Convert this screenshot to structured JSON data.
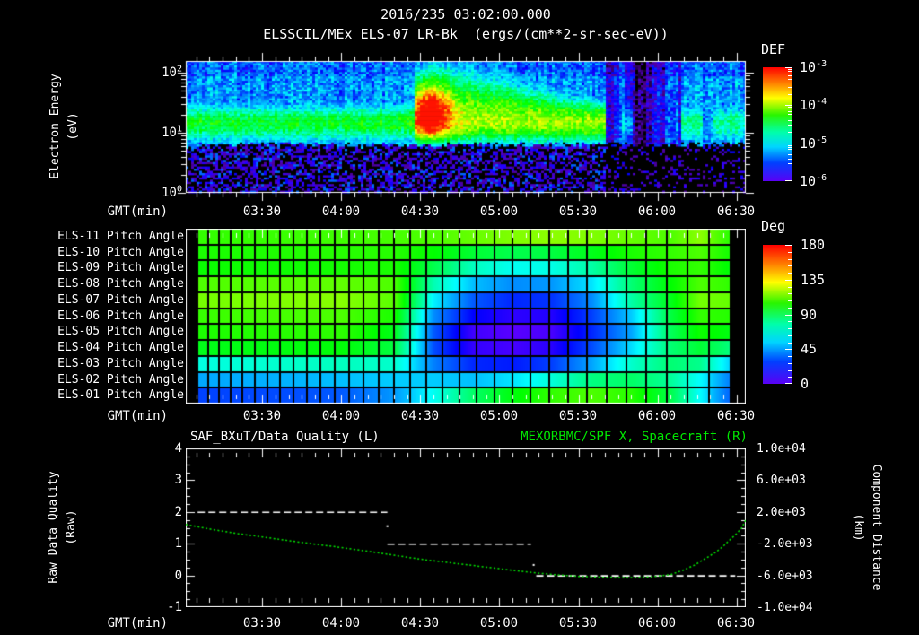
{
  "header": {
    "title_datetime": "2016/235 03:02:00.000",
    "title_instrument": "ELSSCIL/MEx ELS-07 LR-Bk  (ergs/(cm**2-sr-sec-eV))"
  },
  "time_axis": {
    "label": "GMT(min)",
    "ticks": [
      "03:30",
      "04:00",
      "04:30",
      "05:00",
      "05:30",
      "06:00",
      "06:30"
    ],
    "start_min_after_0300": 1,
    "end_min_after_0300": 213.5,
    "major_tick_interval_min": 30,
    "minor_tick_interval_min": 5
  },
  "top_panel": {
    "ylabel_line1": "Electron Energy",
    "ylabel_line2": "(eV)",
    "yticks": [
      {
        "b": "10",
        "e": "2"
      },
      {
        "b": "10",
        "e": "1"
      },
      {
        "b": "10",
        "e": "0"
      }
    ],
    "colorbar": {
      "title": "DEF",
      "labels": [
        {
          "b": "10",
          "e": "-3"
        },
        {
          "b": "10",
          "e": "-4"
        },
        {
          "b": "10",
          "e": "-5"
        },
        {
          "b": "10",
          "e": "-6"
        }
      ]
    }
  },
  "middle_panel": {
    "row_labels": [
      "ELS-11 Pitch Angle",
      "ELS-10 Pitch Angle",
      "ELS-09 Pitch Angle",
      "ELS-08 Pitch Angle",
      "ELS-07 Pitch Angle",
      "ELS-06 Pitch Angle",
      "ELS-05 Pitch Angle",
      "ELS-04 Pitch Angle",
      "ELS-03 Pitch Angle",
      "ELS-02 Pitch Angle",
      "ELS-01 Pitch Angle"
    ],
    "colorbar": {
      "title": "Deg",
      "labels": [
        "180",
        "135",
        "90",
        "45",
        "0"
      ]
    }
  },
  "bottom_panel": {
    "title_left": "SAF_BXuT/Data Quality (L)",
    "title_right": "MEXORBMC/SPF X, Spacecraft (R)",
    "title_right_color": "#00e800",
    "ylabel_left_line1": "Raw Data Quality",
    "ylabel_left_line2": "(Raw)",
    "yticks_left": [
      "4",
      "3",
      "2",
      "1",
      "0",
      "-1"
    ],
    "ylabel_right_line1": "Component Distance",
    "ylabel_right_line2": "(km)",
    "yticks_right": [
      "1.0e+04",
      "6.0e+03",
      "2.0e+03",
      "-2.0e+03",
      "-6.0e+03",
      "-1.0e+04"
    ]
  },
  "chart_data": [
    {
      "type": "heatmap",
      "name": "electron_energy_spectrogram",
      "title": "ELSSCIL/MEx ELS-07 LR-Bk",
      "units": "ergs/(cm**2-sr-sec-eV)",
      "x_range_min_after_0300": [
        1,
        213.5
      ],
      "y_axis": {
        "label": "Electron Energy (eV)",
        "scale": "log",
        "range_log10_eV": [
          0,
          2.2
        ],
        "tick_values_eV": [
          1,
          10,
          100
        ]
      },
      "color_axis": {
        "label": "DEF",
        "scale": "log",
        "range_log10_flux": [
          -6,
          -3
        ]
      },
      "features": {
        "background_log10_flux": -5.28,
        "band": {
          "center_log10_eV": 1.17,
          "sigma_log10": 0.25,
          "peak_log10_flux": -4.4,
          "t_range": [
            1,
            160.5
          ]
        },
        "burst": {
          "t_range": [
            88,
            160.5
          ],
          "peak_log10_flux": -3.1,
          "core_t_min": 94,
          "core_log10_eV": 1.42
        },
        "dropout": {
          "t_range": [
            160.5,
            188.5
          ],
          "background_log10_flux": -5.62,
          "black_columns_t_range": [
            171,
            177.5
          ]
        },
        "recovery": {
          "t_range": [
            188.5,
            213.5
          ],
          "peak_log10_flux": -4.7,
          "break_t_range": [
            197.5,
            201.5
          ]
        },
        "low_energy_cutoff_log10_eV": 0.8
      }
    },
    {
      "type": "heatmap",
      "name": "pitch_angle_by_anode",
      "rows_top_to_bottom": [
        "ELS-11",
        "ELS-10",
        "ELS-09",
        "ELS-08",
        "ELS-07",
        "ELS-06",
        "ELS-05",
        "ELS-04",
        "ELS-03",
        "ELS-02",
        "ELS-01"
      ],
      "times_min_after_0300": [
        2,
        20,
        40,
        60,
        80,
        95,
        110,
        125,
        140,
        155,
        170,
        185,
        196,
        206,
        213
      ],
      "values_deg": [
        [
          108,
          108,
          109,
          110,
          111,
          112,
          116,
          120,
          122,
          120,
          116,
          112,
          122,
          108,
          100
        ],
        [
          104,
          104,
          105,
          106,
          106,
          100,
          92,
          88,
          90,
          96,
          104,
          108,
          112,
          104,
          98
        ],
        [
          101,
          102,
          102,
          103,
          104,
          88,
          70,
          62,
          64,
          74,
          92,
          104,
          108,
          100,
          92
        ],
        [
          112,
          113,
          114,
          115,
          112,
          72,
          50,
          42,
          44,
          56,
          82,
          100,
          112,
          108,
          100
        ],
        [
          118,
          119,
          120,
          121,
          114,
          58,
          34,
          26,
          28,
          42,
          74,
          96,
          118,
          116,
          112
        ],
        [
          108,
          110,
          111,
          112,
          104,
          42,
          20,
          13,
          15,
          30,
          52,
          90,
          108,
          106,
          102
        ],
        [
          104,
          105,
          106,
          107,
          96,
          34,
          10,
          6,
          9,
          26,
          46,
          86,
          102,
          98,
          94
        ],
        [
          96,
          97,
          98,
          99,
          90,
          32,
          12,
          9,
          14,
          32,
          55,
          82,
          92,
          82,
          70
        ],
        [
          64,
          66,
          68,
          70,
          68,
          40,
          26,
          24,
          30,
          46,
          68,
          82,
          78,
          56,
          40
        ],
        [
          46,
          47,
          48,
          50,
          52,
          52,
          50,
          56,
          66,
          80,
          84,
          76,
          60,
          42,
          32
        ],
        [
          30,
          31,
          32,
          34,
          44,
          62,
          84,
          98,
          108,
          112,
          106,
          88,
          60,
          38,
          28
        ]
      ],
      "value_range_deg": [
        0,
        180
      ],
      "grid_columns": 33
    },
    {
      "type": "line",
      "name": "quality_and_distance",
      "series": [
        {
          "name": "SAF_BXuT/Data Quality (L)",
          "axis": "left",
          "color": "#ffffff",
          "style": "dashed-steps",
          "steps": [
            {
              "value": 2,
              "t_start": 5.5,
              "t_end": 77.5
            },
            {
              "value": 1,
              "t_start": 77.5,
              "t_end": 132
            },
            {
              "value": 0,
              "t_start": 134,
              "t_end": 209.5
            }
          ],
          "transition_dots": [
            [
              77.5,
              1.55
            ],
            [
              133,
              0.33
            ]
          ]
        },
        {
          "name": "MEXORBMC/SPF X, Spacecraft (R)",
          "axis": "right",
          "color": "#00e800",
          "style": "dotted",
          "points_t_km": [
            [
              1,
              420
            ],
            [
              10,
              -150
            ],
            [
              20,
              -700
            ],
            [
              30,
              -1150
            ],
            [
              40,
              -1620
            ],
            [
              50,
              -2060
            ],
            [
              60,
              -2480
            ],
            [
              70,
              -2950
            ],
            [
              80,
              -3450
            ],
            [
              90,
              -3950
            ],
            [
              100,
              -4350
            ],
            [
              110,
              -4750
            ],
            [
              120,
              -5150
            ],
            [
              130,
              -5550
            ],
            [
              140,
              -5880
            ],
            [
              150,
              -6120
            ],
            [
              160,
              -6250
            ],
            [
              170,
              -6270
            ],
            [
              178,
              -6180
            ],
            [
              185,
              -5900
            ],
            [
              190,
              -5300
            ],
            [
              194,
              -4700
            ],
            [
              198,
              -3900
            ],
            [
              202,
              -3100
            ],
            [
              205,
              -2300
            ],
            [
              208,
              -1350
            ],
            [
              210,
              -750
            ],
            [
              212,
              0
            ],
            [
              213.5,
              1000
            ]
          ]
        }
      ],
      "left_axis": {
        "label": "Raw Data Quality (Raw)",
        "range": [
          -1,
          4
        ]
      },
      "right_axis": {
        "label": "Component Distance (km)",
        "range": [
          -10000,
          10000
        ]
      }
    }
  ]
}
